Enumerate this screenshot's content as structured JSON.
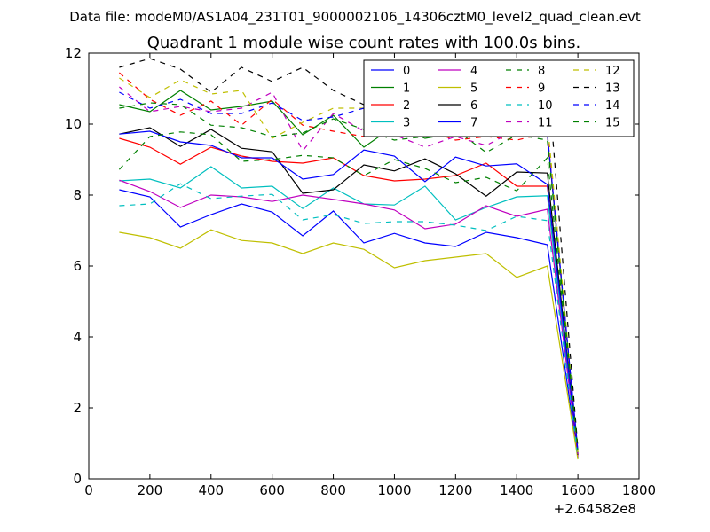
{
  "header": {
    "data_file": "Data file: modeM0/AS1A04_231T01_9000002106_14306cztM0_level2_quad_clean.evt"
  },
  "chart_data": {
    "type": "line",
    "title": "Quadrant 1 module wise count rates with 100.0s bins.",
    "xlabel": "",
    "ylabel": "",
    "x_offset_label": "+2.64582e8",
    "xlim": [
      0,
      1800
    ],
    "ylim": [
      0,
      12
    ],
    "xticks": [
      0,
      200,
      400,
      600,
      800,
      1000,
      1200,
      1400,
      1600,
      1800
    ],
    "yticks": [
      0,
      2,
      4,
      6,
      8,
      10,
      12
    ],
    "grid": false,
    "legend_position": "top-right",
    "legend_columns": 4,
    "x": [
      100,
      200,
      300,
      400,
      500,
      600,
      700,
      800,
      900,
      1000,
      1100,
      1200,
      1300,
      1400,
      1500,
      1600
    ],
    "series": [
      {
        "name": "0",
        "color": "#0000ff",
        "dash": "solid",
        "values": [
          8.15,
          7.95,
          7.1,
          7.45,
          7.75,
          7.52,
          6.85,
          7.55,
          6.65,
          6.92,
          6.65,
          6.55,
          6.95,
          6.8,
          6.6,
          0.6
        ]
      },
      {
        "name": "1",
        "color": "#008000",
        "dash": "solid",
        "values": [
          10.55,
          10.35,
          10.95,
          10.4,
          10.5,
          10.65,
          9.7,
          10.25,
          9.35,
          9.95,
          9.6,
          9.75,
          10.05,
          10.25,
          9.7,
          0.7
        ]
      },
      {
        "name": "2",
        "color": "#ff0000",
        "dash": "solid",
        "values": [
          9.6,
          9.35,
          8.87,
          9.35,
          9.1,
          8.95,
          8.9,
          9.05,
          8.55,
          8.4,
          8.45,
          8.55,
          8.9,
          8.25,
          8.25,
          0.65
        ]
      },
      {
        "name": "3",
        "color": "#00bfbf",
        "dash": "solid",
        "values": [
          8.4,
          8.45,
          8.2,
          8.8,
          8.2,
          8.25,
          7.62,
          8.2,
          7.75,
          7.72,
          8.25,
          7.3,
          7.65,
          7.95,
          7.98,
          0.6
        ]
      },
      {
        "name": "4",
        "color": "#bf00bf",
        "dash": "solid",
        "values": [
          8.42,
          8.1,
          7.65,
          8.0,
          7.95,
          7.82,
          8.0,
          7.88,
          7.75,
          7.58,
          7.05,
          7.18,
          7.7,
          7.4,
          7.6,
          0.62
        ]
      },
      {
        "name": "5",
        "color": "#bfbf00",
        "dash": "solid",
        "values": [
          6.95,
          6.8,
          6.5,
          7.02,
          6.72,
          6.65,
          6.35,
          6.65,
          6.47,
          5.95,
          6.15,
          6.25,
          6.35,
          5.68,
          6.0,
          0.55
        ]
      },
      {
        "name": "6",
        "color": "#000000",
        "dash": "solid",
        "values": [
          9.72,
          9.9,
          9.37,
          9.85,
          9.32,
          9.22,
          8.05,
          8.15,
          8.85,
          8.68,
          9.02,
          8.6,
          7.97,
          8.65,
          8.62,
          0.68
        ]
      },
      {
        "name": "7",
        "color": "#0000ff",
        "dash": "solid",
        "values": [
          9.72,
          9.8,
          9.5,
          9.4,
          9.05,
          9.05,
          8.45,
          8.58,
          9.27,
          9.1,
          8.38,
          9.07,
          8.82,
          8.88,
          8.3,
          0.72
        ]
      },
      {
        "name": "8",
        "color": "#008000",
        "dash": "dashed",
        "values": [
          8.72,
          9.65,
          9.78,
          9.7,
          8.95,
          9.0,
          9.12,
          9.05,
          8.55,
          9.0,
          8.75,
          8.35,
          8.5,
          8.12,
          9.05,
          0.75
        ]
      },
      {
        "name": "9",
        "color": "#ff0000",
        "dash": "dashed",
        "values": [
          11.45,
          10.7,
          10.25,
          10.65,
          9.97,
          10.7,
          9.97,
          9.8,
          9.65,
          9.85,
          9.85,
          9.55,
          9.65,
          9.55,
          9.75,
          0.75
        ]
      },
      {
        "name": "10",
        "color": "#00bfbf",
        "dash": "dashed",
        "values": [
          7.7,
          7.75,
          8.32,
          7.9,
          7.97,
          8.02,
          7.3,
          7.45,
          7.2,
          7.25,
          7.25,
          7.15,
          7.0,
          7.4,
          7.28,
          0.62
        ]
      },
      {
        "name": "11",
        "color": "#bf00bf",
        "dash": "dashed",
        "values": [
          11.05,
          10.35,
          10.5,
          10.35,
          10.45,
          10.9,
          9.25,
          10.3,
          9.8,
          9.7,
          9.35,
          9.65,
          9.4,
          9.85,
          9.8,
          0.7
        ]
      },
      {
        "name": "12",
        "color": "#bfbf00",
        "dash": "dashed",
        "values": [
          11.3,
          10.75,
          11.25,
          10.85,
          10.95,
          9.6,
          10.05,
          10.45,
          10.45,
          9.7,
          10.05,
          10.3,
          10.1,
          10.05,
          10.1,
          0.75
        ]
      },
      {
        "name": "13",
        "color": "#000000",
        "dash": "dashed",
        "values": [
          11.6,
          11.85,
          11.55,
          10.9,
          11.6,
          11.2,
          11.6,
          10.95,
          10.55,
          10.4,
          10.65,
          10.75,
          10.9,
          11.0,
          11.5,
          0.85
        ]
      },
      {
        "name": "14",
        "color": "#0000ff",
        "dash": "dashed",
        "values": [
          10.9,
          10.45,
          10.7,
          10.3,
          10.3,
          10.6,
          10.1,
          10.2,
          10.45,
          10.0,
          10.15,
          10.3,
          9.75,
          9.8,
          9.75,
          0.8
        ]
      },
      {
        "name": "15",
        "color": "#008000",
        "dash": "dashed",
        "values": [
          10.45,
          10.6,
          10.55,
          9.97,
          9.9,
          9.65,
          9.75,
          10.15,
          9.85,
          9.55,
          9.65,
          9.85,
          9.2,
          9.7,
          9.55,
          0.8
        ]
      }
    ]
  }
}
